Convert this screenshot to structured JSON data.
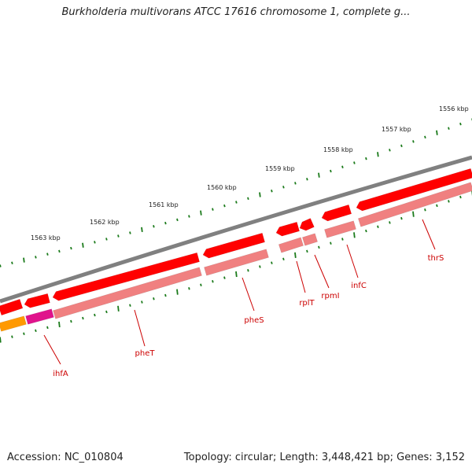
{
  "title": "Burkholderia multivorans ATCC 17616 chromosome 1, complete g...",
  "footer": {
    "accession": "Accession: NC_010804",
    "topology": "Topology: circular; Length: 3,448,421 bp; Genes: 3,152"
  },
  "colors": {
    "backbone": "#808080",
    "gene_forward": "#ff0000",
    "gene_reverse": "#f08080",
    "gene_highlight": "#e0138c",
    "gene_other": "#ff9900",
    "tick": "#1a7a1a",
    "label": "#cc0000"
  },
  "map": {
    "units": "kbp",
    "tick_labels": [
      "1563 kbp",
      "1562 kbp",
      "1561 kbp",
      "1560 kbp",
      "1559 kbp",
      "1558 kbp",
      "1557 kbp",
      "1556 kbp"
    ],
    "gene_labels": [
      "ihfA",
      "pheT",
      "pheS",
      "rplT",
      "rpmI",
      "infC",
      "thrS"
    ]
  }
}
